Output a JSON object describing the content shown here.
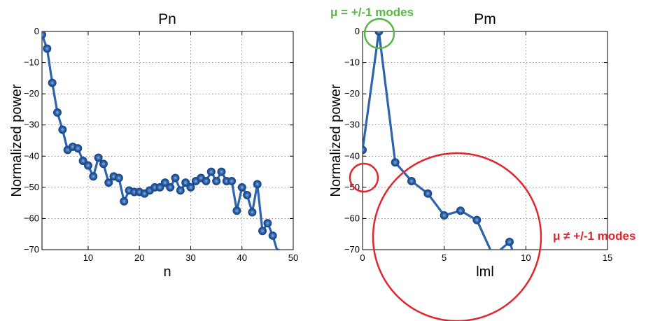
{
  "colors": {
    "line": "#2d64ad",
    "green": "#5ab546",
    "red": "#e0262e"
  },
  "chart_data": [
    {
      "type": "line",
      "title": "Pn",
      "xlabel": "n",
      "ylabel": "Normalized power",
      "xlim": [
        1,
        50
      ],
      "ylim": [
        -70,
        0
      ],
      "xticks": [
        10,
        20,
        30,
        40,
        50
      ],
      "yticks": [
        0,
        -10,
        -20,
        -30,
        -40,
        -50,
        -60,
        -70
      ],
      "grid": true,
      "x": [
        1,
        2,
        3,
        4,
        5,
        6,
        7,
        8,
        9,
        10,
        11,
        12,
        13,
        14,
        15,
        16,
        17,
        18,
        19,
        20,
        21,
        22,
        23,
        24,
        25,
        26,
        27,
        28,
        29,
        30,
        31,
        32,
        33,
        34,
        35,
        36,
        37,
        38,
        39,
        40,
        41,
        42,
        43,
        44,
        45,
        46,
        47
      ],
      "values": [
        -1,
        -5.5,
        -16.5,
        -26,
        -31.5,
        -38,
        -37,
        -37.5,
        -41.5,
        -43,
        -46.5,
        -40.5,
        -42.5,
        -48.5,
        -46.5,
        -47,
        -54.5,
        -51,
        -51.5,
        -51.5,
        -52,
        -51,
        -50,
        -50,
        -48.5,
        -50,
        -47,
        -51,
        -48.5,
        -50,
        -48,
        -47,
        -48,
        -45,
        -48,
        -45,
        -48,
        -48,
        -57.5,
        -50,
        -52.5,
        -58,
        -49,
        -64,
        -61.5,
        -65.5,
        -71
      ]
    },
    {
      "type": "line",
      "title": "Pm",
      "xlabel": "lml",
      "ylabel": "Normalized power",
      "xlim": [
        0,
        15
      ],
      "ylim": [
        -70,
        0
      ],
      "xticks": [
        0,
        5,
        10,
        15
      ],
      "yticks": [
        0,
        -10,
        -20,
        -30,
        -40,
        -50,
        -60,
        -70
      ],
      "grid": true,
      "x": [
        0,
        1,
        2,
        3,
        4,
        5,
        6,
        7,
        8,
        9,
        9.3
      ],
      "values": [
        -38,
        0,
        -42,
        -48,
        -52,
        -59,
        -57.5,
        -60.5,
        -72,
        -67.5,
        -72
      ]
    }
  ],
  "annotations": {
    "green_label": "μ = +/-1 modes",
    "red_label": "μ ≠ +/-1 modes"
  }
}
